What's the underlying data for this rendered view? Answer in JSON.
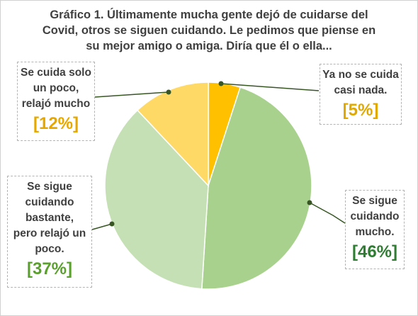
{
  "chart_data": {
    "type": "pie",
    "title_lines": [
      "Gráfico 1. Últimamente mucha gente dejó de cuidarse del",
      "Covid, otros se siguen cuidando.  Le pedimos que piense en",
      "su mejor amigo o amiga. Diría que él o ella..."
    ],
    "slices": [
      {
        "label_lines": [
          "Ya no se cuida",
          "casi nada."
        ],
        "value": 5,
        "pct_label": "[5%]",
        "color": "#ffc000",
        "pct_color": "#e0a800"
      },
      {
        "label_lines": [
          "Se sigue",
          "cuidando",
          "mucho."
        ],
        "value": 46,
        "pct_label": "[46%]",
        "color": "#a9d18e",
        "pct_color": "#2e7d32"
      },
      {
        "label_lines": [
          "Se sigue",
          "cuidando",
          "bastante,",
          "pero relajó un",
          "poco."
        ],
        "value": 37,
        "pct_label": "[37%]",
        "color": "#c5e0b4",
        "pct_color": "#5aa02c"
      },
      {
        "label_lines": [
          "Se cuida solo",
          "un poco,",
          "relajó mucho"
        ],
        "value": 12,
        "pct_label": "[12%]",
        "color": "#ffd966",
        "pct_color": "#e6a800"
      }
    ],
    "leader_line_color": "#375623"
  }
}
